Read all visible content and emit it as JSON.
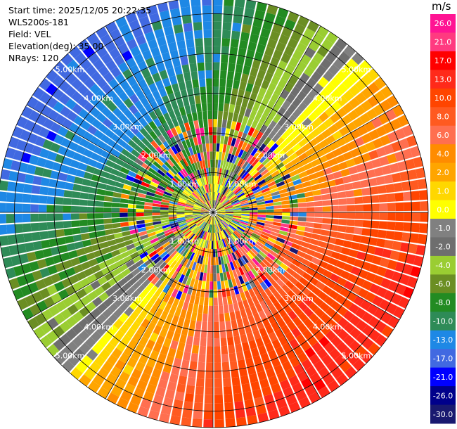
{
  "header": {
    "start_time": "Start time: 2025/12/05 20:22:35",
    "instrument": "WLS200s-181",
    "field": "Field: VEL",
    "elevation": "Elevation(deg): 35.00",
    "nrays": "NRays: 120"
  },
  "range_labels": [
    "1.00km",
    "2.00km",
    "3.00km",
    "4.00km",
    "5.00km"
  ],
  "colorbar": {
    "unit": "m/s",
    "ticks": [
      "26.0",
      "21.0",
      "17.0",
      "13.0",
      "10.0",
      "8.0",
      "6.0",
      "4.0",
      "2.0",
      "1.0",
      "0.0",
      "-1.0",
      "-2.0",
      "-4.0",
      "-6.0",
      "-8.0",
      "-10.0",
      "-13.0",
      "-17.0",
      "-21.0",
      "-26.0",
      "-30.0"
    ],
    "colors": [
      "#ff1493",
      "#ff3a80",
      "#ff0000",
      "#ff2a1a",
      "#ff4500",
      "#ff5a20",
      "#ff6f50",
      "#ff8c00",
      "#ffa500",
      "#ffd700",
      "#ffff00",
      "#808080",
      "#6e6e6e",
      "#9acd32",
      "#6b8e23",
      "#228b22",
      "#2e8b57",
      "#1e88e5",
      "#4169e1",
      "#0000ff",
      "#00008b",
      "#191970"
    ]
  }
}
